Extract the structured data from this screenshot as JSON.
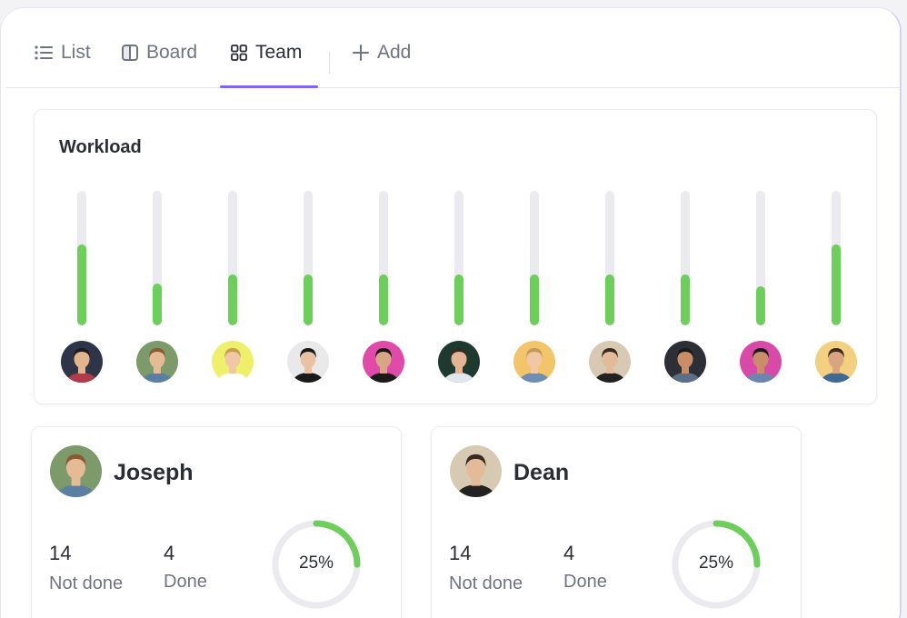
{
  "tabs": [
    {
      "label": "List",
      "icon": "list-icon"
    },
    {
      "label": "Board",
      "icon": "board-icon"
    },
    {
      "label": "Team",
      "icon": "grid-icon",
      "active": true
    },
    {
      "label": "Add",
      "icon": "plus-icon"
    }
  ],
  "workload": {
    "title": "Workload",
    "bars": [
      {
        "fill": 0.6,
        "skin": "#e4b48e",
        "hair": "#1c1c1c",
        "bg": "#2f3548",
        "shirt": "#b33a4a"
      },
      {
        "fill": 0.31,
        "skin": "#e5bb95",
        "hair": "#8a5a34",
        "bg": "#7c9a6a",
        "shirt": "#5a7fa3"
      },
      {
        "fill": 0.38,
        "skin": "#f0c8a4",
        "hair": "#c99c55",
        "bg": "#eef06a",
        "shirt": "#ffffff"
      },
      {
        "fill": 0.38,
        "skin": "#e9c1a3",
        "hair": "#1a1a1a",
        "bg": "#e9e9ea",
        "shirt": "#1a1a1a"
      },
      {
        "fill": 0.38,
        "skin": "#d9a685",
        "hair": "#1a1414",
        "bg": "#e04aa8",
        "shirt": "#1a1a1a"
      },
      {
        "fill": 0.38,
        "skin": "#e4b592",
        "hair": "#3a2a1e",
        "bg": "#1e3a30",
        "shirt": "#dfe6f0"
      },
      {
        "fill": 0.38,
        "skin": "#f0c8a4",
        "hair": "#c49a5c",
        "bg": "#f2c56a",
        "shirt": "#6c8fb5"
      },
      {
        "fill": 0.38,
        "skin": "#e4bb98",
        "hair": "#3a2a1e",
        "bg": "#d8c9b2",
        "shirt": "#222222"
      },
      {
        "fill": 0.38,
        "skin": "#c98d6a",
        "hair": "#1a1a1a",
        "bg": "#2c2f36",
        "shirt": "#5b6f86"
      },
      {
        "fill": 0.29,
        "skin": "#c98d6a",
        "hair": "#1a1a1a",
        "bg": "#d94aa8",
        "shirt": "#6b87b0"
      },
      {
        "fill": 0.6,
        "skin": "#d9a480",
        "hair": "#3a2a1e",
        "bg": "#f2d080",
        "shirt": "#3e6a98"
      }
    ]
  },
  "members": [
    {
      "name": "Joseph",
      "not_done_count": "14",
      "not_done_label": "Not done",
      "done_count": "4",
      "done_label": "Done",
      "progress": 0.25,
      "progress_label": "25%",
      "avatar": {
        "skin": "#e5bb95",
        "hair": "#8a5a34",
        "bg": "#7c9a6a",
        "shirt": "#5a7fa3"
      }
    },
    {
      "name": "Dean",
      "not_done_count": "14",
      "not_done_label": "Not done",
      "done_count": "4",
      "done_label": "Done",
      "progress": 0.25,
      "progress_label": "25%",
      "avatar": {
        "skin": "#e4bb98",
        "hair": "#3a2a1e",
        "bg": "#d8c9b2",
        "shirt": "#222222"
      }
    }
  ],
  "colors": {
    "accent": "#7b68ee",
    "progress": "#6bcf5a",
    "track": "#ebebef"
  }
}
